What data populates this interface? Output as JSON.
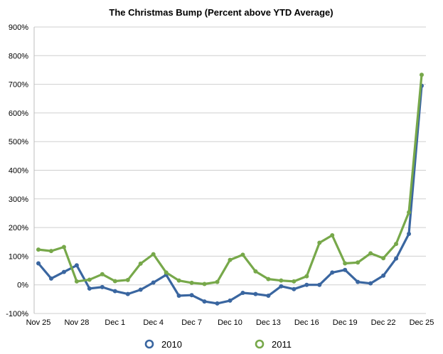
{
  "chart_data": {
    "type": "line",
    "title": "The Christmas Bump (Percent above YTD Average)",
    "xlabel": "",
    "ylabel": "",
    "ylim": [
      -100,
      900
    ],
    "y_ticks": [
      -100,
      0,
      100,
      200,
      300,
      400,
      500,
      600,
      700,
      800,
      900
    ],
    "y_tick_labels": [
      "-100%",
      "0%",
      "100%",
      "200%",
      "300%",
      "400%",
      "500%",
      "600%",
      "700%",
      "800%",
      "900%"
    ],
    "x": [
      "Nov 25",
      "Nov 26",
      "Nov 27",
      "Nov 28",
      "Nov 29",
      "Nov 30",
      "Dec 1",
      "Dec 2",
      "Dec 3",
      "Dec 4",
      "Dec 5",
      "Dec 6",
      "Dec 7",
      "Dec 8",
      "Dec 9",
      "Dec 10",
      "Dec 11",
      "Dec 12",
      "Dec 13",
      "Dec 14",
      "Dec 15",
      "Dec 16",
      "Dec 17",
      "Dec 18",
      "Dec 19",
      "Dec 20",
      "Dec 21",
      "Dec 22",
      "Dec 23",
      "Dec 24",
      "Dec 25"
    ],
    "x_tick_labels": [
      "Nov 25",
      "Nov 28",
      "Dec 1",
      "Dec 4",
      "Dec 7",
      "Dec 10",
      "Dec 13",
      "Dec 16",
      "Dec 19",
      "Dec 22",
      "Dec 25"
    ],
    "grid": true,
    "legend_position": "bottom",
    "series": [
      {
        "name": "2010",
        "color": "#3a66a0",
        "values": [
          75,
          22,
          45,
          68,
          -13,
          -8,
          -22,
          -32,
          -17,
          8,
          35,
          -38,
          -36,
          -58,
          -65,
          -55,
          -28,
          -32,
          -38,
          -5,
          -15,
          0,
          0,
          43,
          52,
          10,
          5,
          32,
          92,
          178,
          695
        ]
      },
      {
        "name": "2011",
        "color": "#77a84a",
        "values": [
          123,
          118,
          132,
          12,
          18,
          37,
          13,
          17,
          74,
          107,
          43,
          15,
          7,
          3,
          10,
          87,
          105,
          47,
          20,
          15,
          12,
          30,
          147,
          173,
          75,
          78,
          110,
          93,
          143,
          253,
          733
        ]
      }
    ]
  }
}
